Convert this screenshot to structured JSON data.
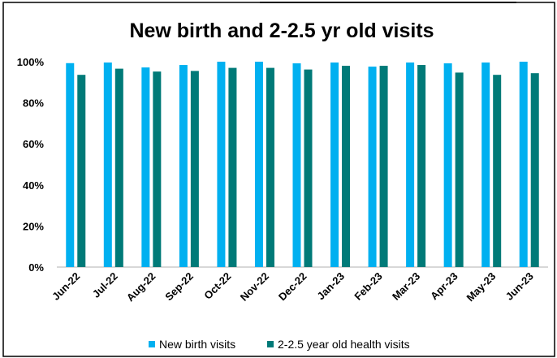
{
  "chart_data": {
    "type": "bar",
    "title": "New birth and 2-2.5 yr old visits",
    "categories": [
      "Jun-22",
      "Jul-22",
      "Aug-22",
      "Sep-22",
      "Oct-22",
      "Nov-22",
      "Dec-22",
      "Jan-23",
      "Feb-23",
      "Mar-23",
      "Apr-23",
      "May-23",
      "Jun-23"
    ],
    "series": [
      {
        "name": "New birth visits",
        "color": "#00b0f0",
        "values": [
          99.3,
          99.6,
          97.2,
          98.4,
          100.0,
          100.0,
          99.2,
          99.6,
          97.6,
          99.6,
          99.2,
          99.6,
          100.0
        ]
      },
      {
        "name": "2-2.5 year old health visits",
        "color": "#007a78",
        "values": [
          93.6,
          96.6,
          95.2,
          95.5,
          97.0,
          97.0,
          96.2,
          98.0,
          98.0,
          98.4,
          94.7,
          93.6,
          94.4
        ]
      }
    ],
    "y_ticks": [
      "0%",
      "20%",
      "40%",
      "60%",
      "80%",
      "100%"
    ],
    "ylim": [
      0,
      100
    ],
    "grid": false,
    "legend_position": "bottom"
  }
}
